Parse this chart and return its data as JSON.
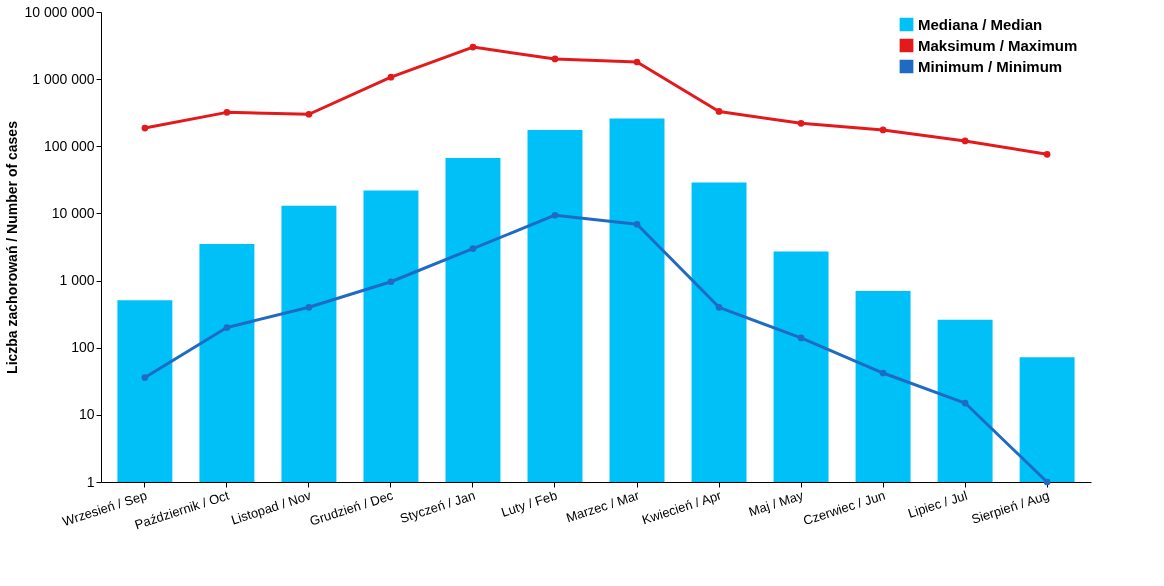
{
  "chart_data": {
    "type": "bar",
    "ylabel": "Liczba zachorowań  /  Number of cases",
    "categories": [
      "Wrzesień / Sep",
      "Październik / Oct",
      "Listopad / Nov",
      "Grudzień / Dec",
      "Styczeń  / Jan",
      "Luty / Feb",
      "Marzec / Mar",
      "Kwiecień / Apr",
      "Maj / May",
      "Czerwiec / Jun",
      "Lipiec / Jul",
      "Sierpień / Aug"
    ],
    "series": [
      {
        "name": "Mediana  /  Median",
        "color": "#00c0f8",
        "values": [
          510,
          3500,
          13000,
          22000,
          67000,
          175000,
          260000,
          29000,
          2700,
          700,
          260,
          72
        ]
      },
      {
        "name": "Maksimum  /  Maximum",
        "type": "line",
        "color": "#e3191c",
        "values": [
          187000,
          320000,
          300000,
          1070000,
          3000000,
          2000000,
          1800000,
          330000,
          220000,
          175000,
          120000,
          76000
        ]
      },
      {
        "name": "Minimum  /  Minimum",
        "type": "line",
        "color": "#1f6bc4",
        "values": [
          36,
          200,
          400,
          960,
          3000,
          9400,
          6900,
          400,
          140,
          42,
          15,
          1
        ]
      }
    ],
    "log": true,
    "ylim": [
      1,
      10000000
    ],
    "yticks": [
      1,
      10,
      100,
      {
        "value": 1000,
        "label": "1 000"
      },
      {
        "value": 10000,
        "label": "10 000"
      },
      {
        "value": 100000,
        "label": "100 000"
      },
      {
        "value": 1000000,
        "label": "1 000 000"
      },
      {
        "value": 10000000,
        "label": "10 000 000"
      }
    ],
    "grid": false,
    "legend": "top right",
    "marker": "circle",
    "line_style": "solid"
  }
}
